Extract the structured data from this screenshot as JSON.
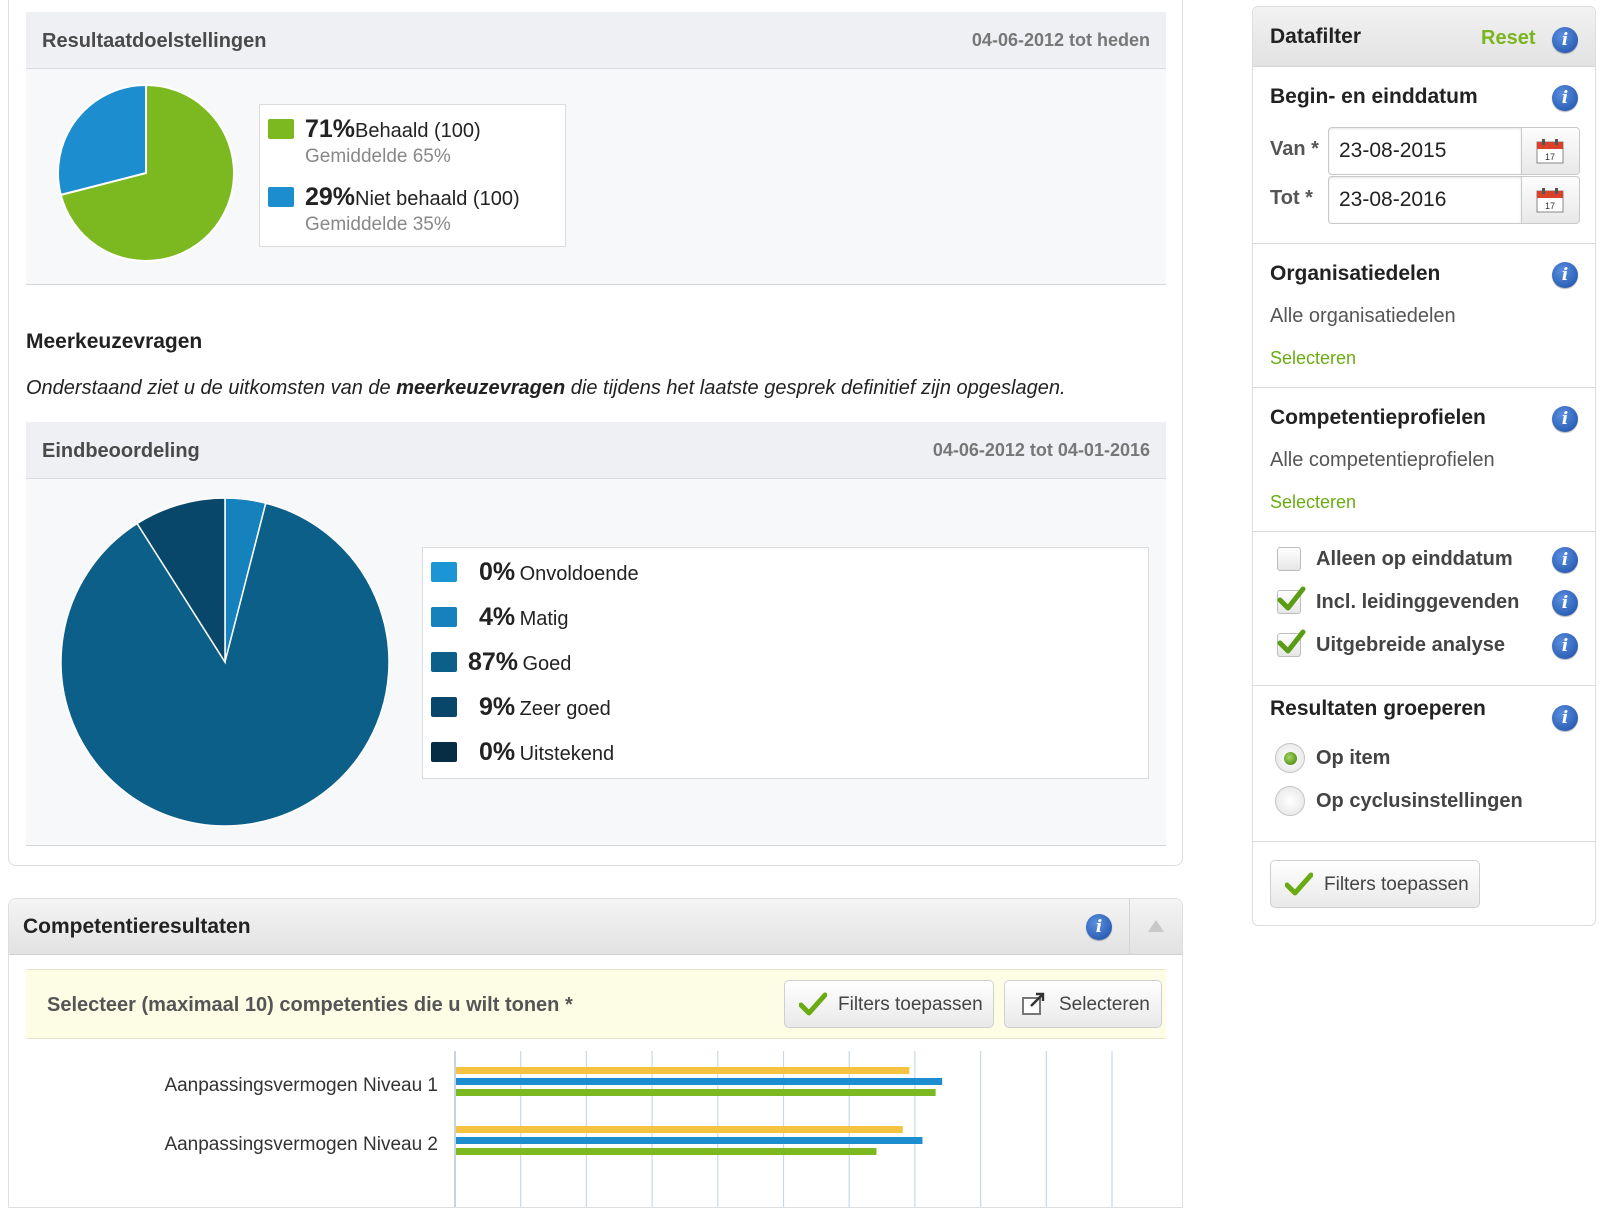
{
  "resultaat": {
    "title": "Resultaatdoelstellingen",
    "date_range": "04-06-2012 tot heden",
    "legend": [
      {
        "pct": "71%",
        "label": "Behaald (100)",
        "avg": "Gemiddelde 65%",
        "color": "#7cb920"
      },
      {
        "pct": "29%",
        "label": "Niet behaald (100)",
        "avg": "Gemiddelde 35%",
        "color": "#1c8dcf"
      }
    ]
  },
  "meerkeuze": {
    "title": "Meerkeuzevragen",
    "desc_pre": "Onderstaand ziet u de uitkomsten van de ",
    "desc_bold": "meerkeuzevragen",
    "desc_post": " die tijdens het laatste gesprek definitief zijn opgeslagen."
  },
  "eind": {
    "title": "Eindbeoordeling",
    "date_range": "04-06-2012 tot 04-01-2016",
    "legend": [
      {
        "pct": "0%",
        "label": "Onvoldoende",
        "color": "#1b95d6"
      },
      {
        "pct": "4%",
        "label": "Matig",
        "color": "#1582bd"
      },
      {
        "pct": "87%",
        "label": "Goed",
        "color": "#0b5f89"
      },
      {
        "pct": "9%",
        "label": "Zeer goed",
        "color": "#08476a"
      },
      {
        "pct": "0%",
        "label": "Uitstekend",
        "color": "#062d44"
      }
    ]
  },
  "comp": {
    "title": "Competentieresultaten",
    "select_label": "Selecteer (maximaal 10) competenties die u wilt tonen *",
    "apply_label": "Filters toepassen",
    "select_btn": "Selecteren",
    "rows": [
      "Aanpassingsvermogen Niveau 1",
      "Aanpassingsvermogen Niveau 2"
    ]
  },
  "chart_data": {
    "type": "bar",
    "orientation": "horizontal",
    "categories": [
      "Aanpassingsvermogen Niveau 1",
      "Aanpassingsvermogen Niveau 2"
    ],
    "series": [
      {
        "values": [
          3.45,
          3.4
        ],
        "color": "#f5c242"
      },
      {
        "values": [
          3.7,
          3.55
        ],
        "color": "#1c8dcf"
      },
      {
        "values": [
          3.65,
          3.2
        ],
        "color": "#7cb920"
      }
    ],
    "xlim": [
      0,
      5
    ],
    "grid": true
  },
  "datafilter": {
    "title": "Datafilter",
    "reset": "Reset",
    "date_section": "Begin- en einddatum",
    "van_label": "Van *",
    "van_value": "23-08-2015",
    "tot_label": "Tot *",
    "tot_value": "23-08-2016",
    "org_title": "Organisatiedelen",
    "org_value": "Alle organisatiedelen",
    "org_link": "Selecteren",
    "prof_title": "Competentieprofielen",
    "prof_value": "Alle competentieprofielen",
    "prof_link": "Selecteren",
    "checks": [
      {
        "label": "Alleen op einddatum",
        "checked": false
      },
      {
        "label": "Incl. leidinggevenden",
        "checked": true
      },
      {
        "label": "Uitgebreide analyse",
        "checked": true
      }
    ],
    "group_title": "Resultaten groeperen",
    "radios": [
      {
        "label": "Op item",
        "selected": true
      },
      {
        "label": "Op cyclusinstellingen",
        "selected": false
      }
    ],
    "apply_label": "Filters toepassen",
    "icons": {
      "info": "info-icon",
      "calendar": "calendar-icon",
      "check": "checkmark-icon",
      "popup": "external-window-icon",
      "collapse": "chevron-up-icon"
    }
  }
}
